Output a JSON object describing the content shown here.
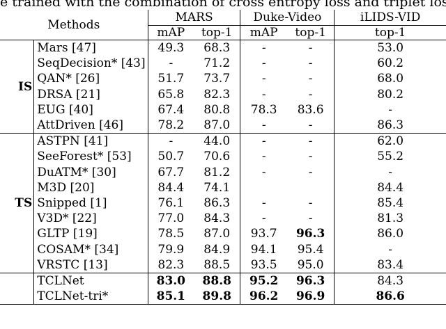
{
  "caption": "e trained with the combination of cross entropy loss and triplet loss",
  "header": {
    "methods": "Methods",
    "groups": [
      "MARS",
      "Duke-Video",
      "iLIDS-VID"
    ],
    "subcols": [
      "mAP",
      "top-1",
      "mAP",
      "top-1",
      "top-1"
    ]
  },
  "sections": [
    {
      "label": "IS",
      "rows": [
        {
          "method": "Mars [47]",
          "vals": [
            "49.3",
            "68.3",
            "-",
            "-",
            "53.0"
          ],
          "bold": [
            false,
            false,
            false,
            false,
            false
          ]
        },
        {
          "method": "SeqDecision* [43]",
          "vals": [
            "-",
            "71.2",
            "-",
            "-",
            "60.2"
          ],
          "bold": [
            false,
            false,
            false,
            false,
            false
          ]
        },
        {
          "method": "QAN* [26]",
          "vals": [
            "51.7",
            "73.7",
            "-",
            "-",
            "68.0"
          ],
          "bold": [
            false,
            false,
            false,
            false,
            false
          ]
        },
        {
          "method": "DRSA [21]",
          "vals": [
            "65.8",
            "82.3",
            "-",
            "-",
            "80.2"
          ],
          "bold": [
            false,
            false,
            false,
            false,
            false
          ]
        },
        {
          "method": "EUG [40]",
          "vals": [
            "67.4",
            "80.8",
            "78.3",
            "83.6",
            "-"
          ],
          "bold": [
            false,
            false,
            false,
            false,
            false
          ]
        },
        {
          "method": "AttDriven [46]",
          "vals": [
            "78.2",
            "87.0",
            "-",
            "-",
            "86.3"
          ],
          "bold": [
            false,
            false,
            false,
            false,
            false
          ]
        }
      ]
    },
    {
      "label": "TS",
      "rows": [
        {
          "method": "ASTPN [41]",
          "vals": [
            "-",
            "44.0",
            "-",
            "-",
            "62.0"
          ],
          "bold": [
            false,
            false,
            false,
            false,
            false
          ]
        },
        {
          "method": "SeeForest* [53]",
          "vals": [
            "50.7",
            "70.6",
            "-",
            "-",
            "55.2"
          ],
          "bold": [
            false,
            false,
            false,
            false,
            false
          ]
        },
        {
          "method": "DuATM* [30]",
          "vals": [
            "67.7",
            "81.2",
            "-",
            "-",
            "-"
          ],
          "bold": [
            false,
            false,
            false,
            false,
            false
          ]
        },
        {
          "method": "M3D [20]",
          "vals": [
            "84.4",
            "74.1",
            "",
            "",
            "84.4"
          ],
          "bold": [
            false,
            false,
            false,
            false,
            false
          ]
        },
        {
          "method": "Snipped [1]",
          "vals": [
            "76.1",
            "86.3",
            "-",
            "-",
            "85.4"
          ],
          "bold": [
            false,
            false,
            false,
            false,
            false
          ]
        },
        {
          "method": "V3D* [22]",
          "vals": [
            "77.0",
            "84.3",
            "-",
            "-",
            "81.3"
          ],
          "bold": [
            false,
            false,
            false,
            false,
            false
          ]
        },
        {
          "method": "GLTP [19]",
          "vals": [
            "78.5",
            "87.0",
            "93.7",
            "96.3",
            "86.0"
          ],
          "bold": [
            false,
            false,
            false,
            true,
            false
          ]
        },
        {
          "method": "COSAM* [34]",
          "vals": [
            "79.9",
            "84.9",
            "94.1",
            "95.4",
            "-"
          ],
          "bold": [
            false,
            false,
            false,
            false,
            false
          ]
        },
        {
          "method": "VRSTC [13]",
          "vals": [
            "82.3",
            "88.5",
            "93.5",
            "95.0",
            "83.4"
          ],
          "bold": [
            false,
            false,
            false,
            false,
            false
          ]
        }
      ]
    },
    {
      "label": "",
      "rows": [
        {
          "method": "TCLNet",
          "vals": [
            "83.0",
            "88.8",
            "95.2",
            "96.3",
            "84.3"
          ],
          "bold": [
            true,
            true,
            true,
            true,
            false
          ]
        },
        {
          "method": "TCLNet-tri*",
          "vals": [
            "85.1",
            "89.8",
            "96.2",
            "96.9",
            "86.6"
          ],
          "bold": [
            true,
            true,
            true,
            true,
            true
          ]
        }
      ]
    }
  ]
}
